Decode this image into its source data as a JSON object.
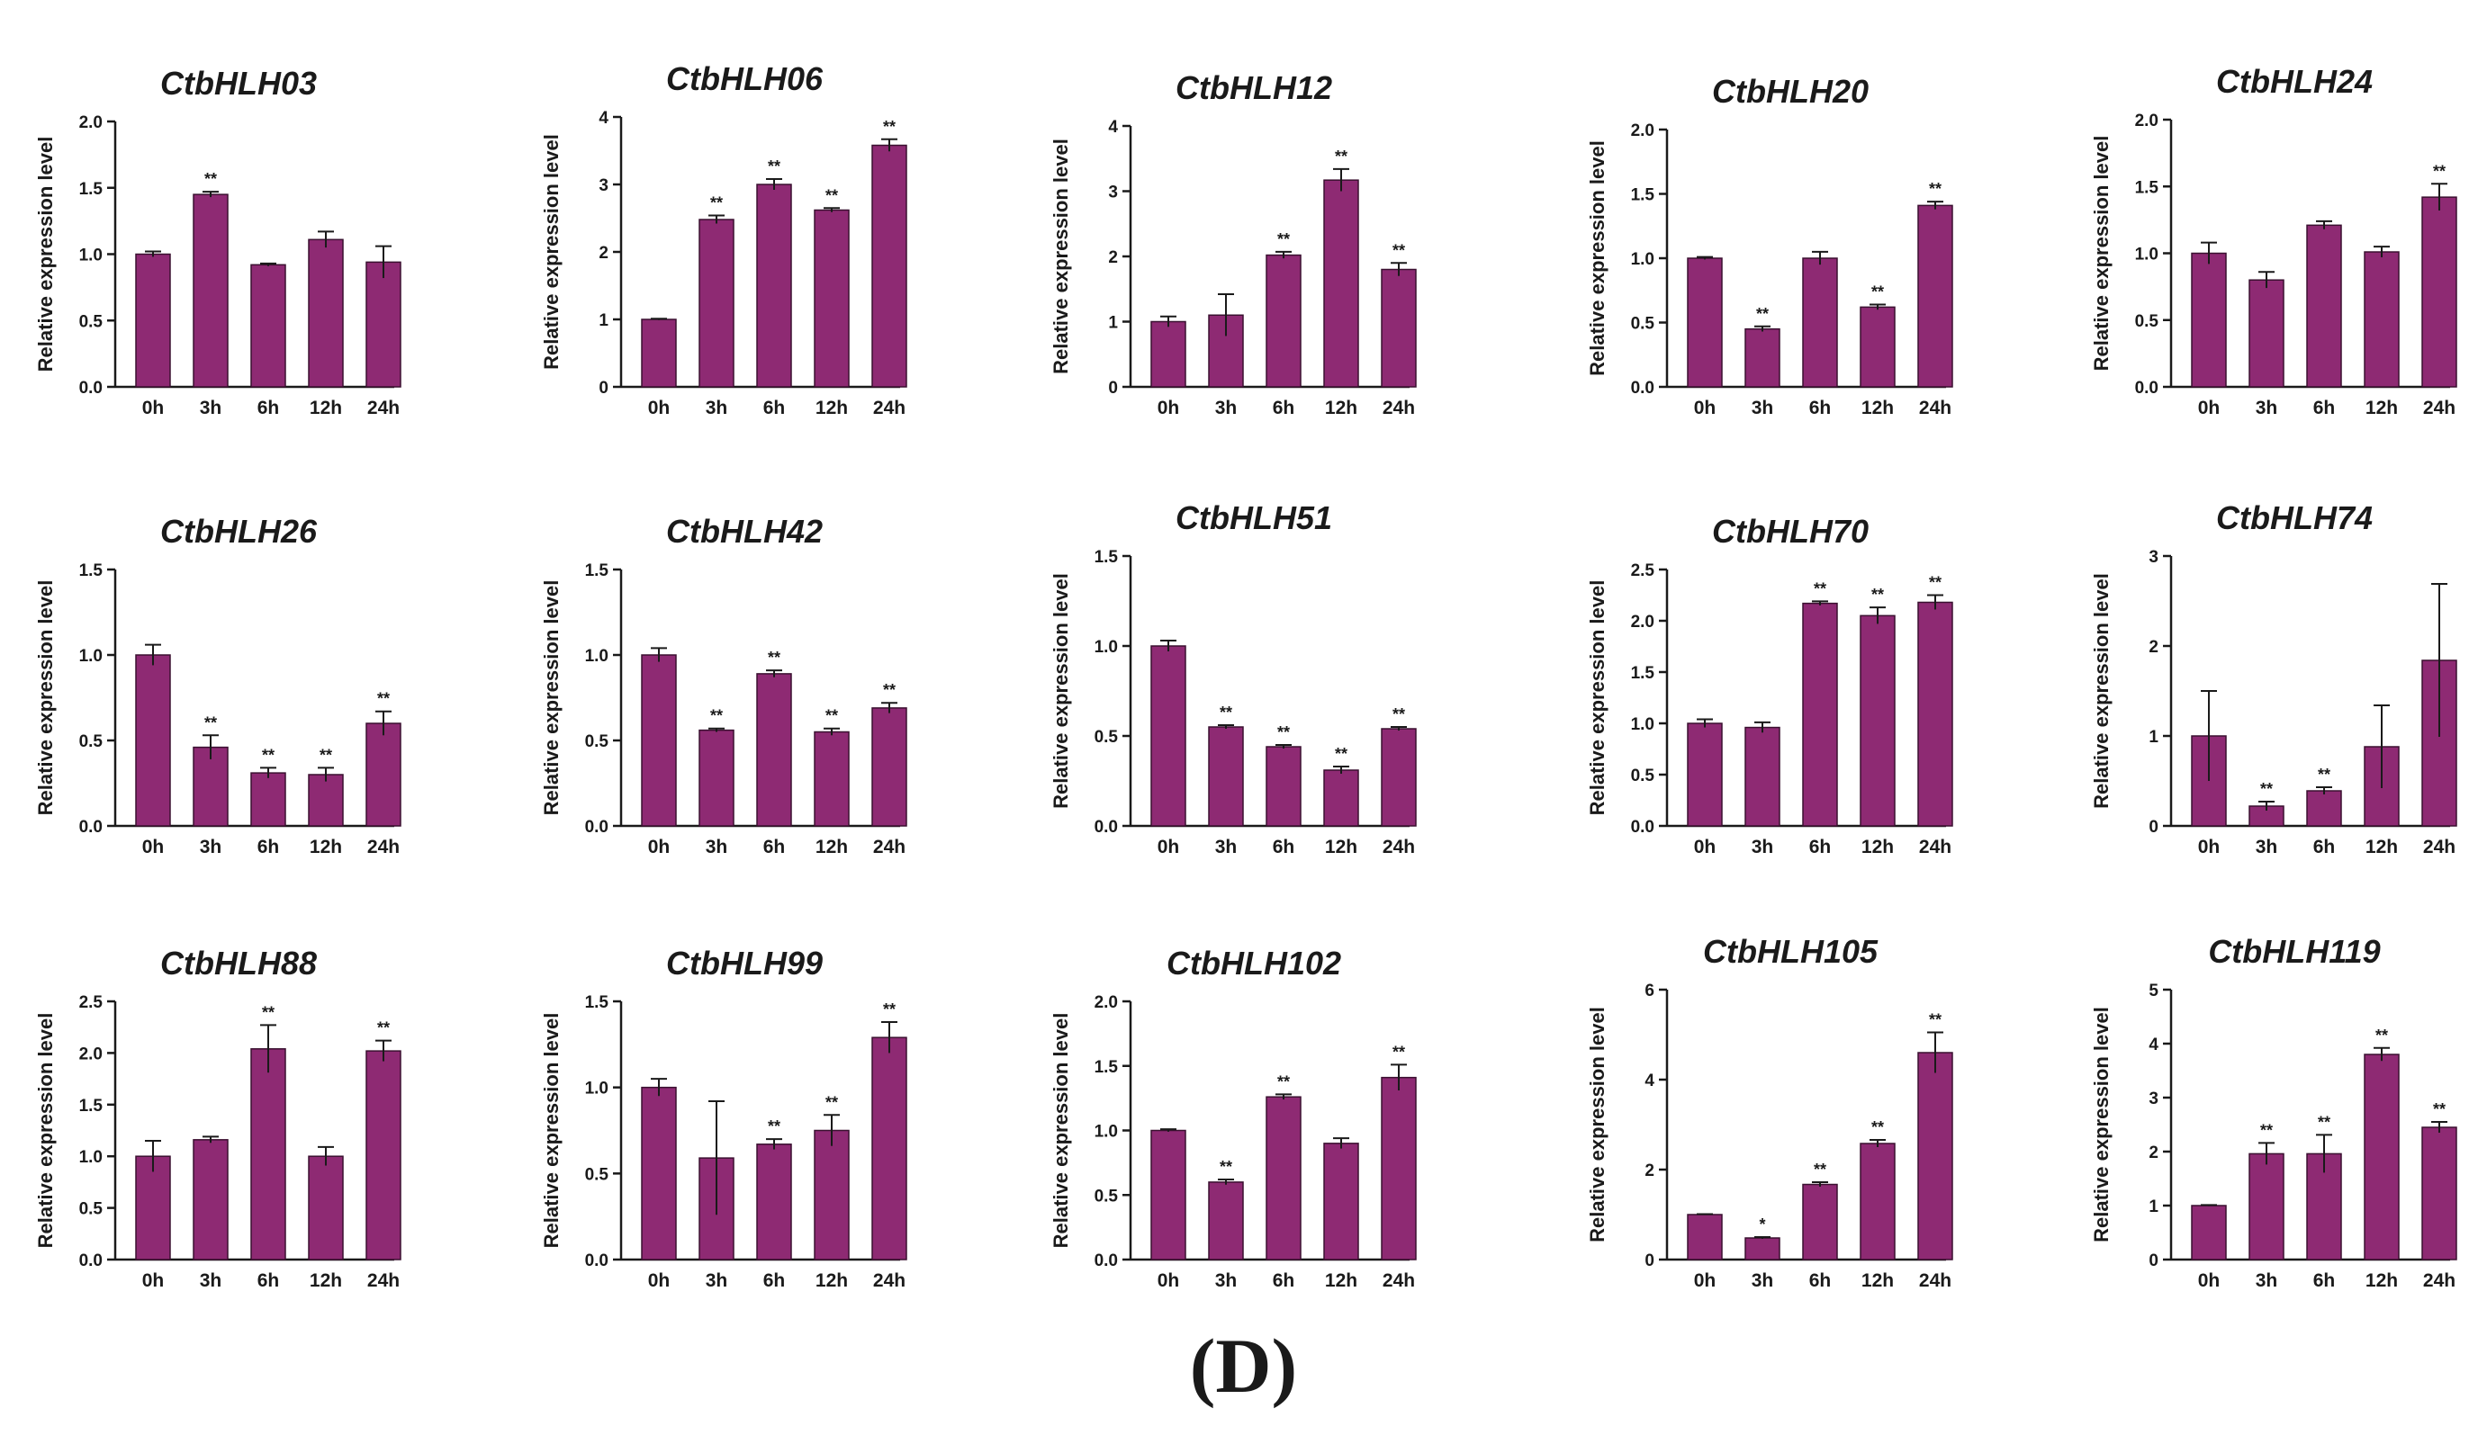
{
  "panel_label": "(D)",
  "colors": {
    "bar": "#8e2a73",
    "bar_edge": "#3a1030",
    "axis": "#1a1a1a"
  },
  "chart_data": [
    {
      "type": "bar",
      "title": "CtbHLH03",
      "ylabel": "Relative expression level",
      "categories": [
        "0h",
        "3h",
        "6h",
        "12h",
        "24h"
      ],
      "values": [
        1.0,
        1.45,
        0.92,
        1.11,
        0.94
      ],
      "errors": [
        0.02,
        0.02,
        0.01,
        0.06,
        0.12
      ],
      "significance": [
        "",
        "**",
        "",
        "",
        ""
      ],
      "ylim": [
        0,
        2
      ],
      "yticks": [
        "0.0",
        "0.5",
        "1.0",
        "1.5",
        "2.0"
      ]
    },
    {
      "type": "bar",
      "title": "CtbHLH06",
      "ylabel": "Relative expression level",
      "categories": [
        "0h",
        "3h",
        "6h",
        "12h",
        "24h"
      ],
      "values": [
        1.0,
        2.48,
        3.0,
        2.62,
        3.58
      ],
      "errors": [
        0.01,
        0.06,
        0.08,
        0.03,
        0.09
      ],
      "significance": [
        "",
        "**",
        "**",
        "**",
        "**"
      ],
      "ylim": [
        0,
        4
      ],
      "yticks": [
        "0",
        "1",
        "2",
        "3",
        "4"
      ]
    },
    {
      "type": "bar",
      "title": "CtbHLH12",
      "ylabel": "Relative expression level",
      "categories": [
        "0h",
        "3h",
        "6h",
        "12h",
        "24h"
      ],
      "values": [
        1.0,
        1.1,
        2.02,
        3.17,
        1.8
      ],
      "errors": [
        0.08,
        0.32,
        0.05,
        0.17,
        0.1
      ],
      "significance": [
        "",
        "",
        "**",
        "**",
        "**"
      ],
      "ylim": [
        0,
        4
      ],
      "yticks": [
        "0",
        "1",
        "2",
        "3",
        "4"
      ]
    },
    {
      "type": "bar",
      "title": "CtbHLH20",
      "ylabel": "Relative expression level",
      "categories": [
        "0h",
        "3h",
        "6h",
        "12h",
        "24h"
      ],
      "values": [
        1.0,
        0.45,
        1.0,
        0.62,
        1.41
      ],
      "errors": [
        0.01,
        0.02,
        0.05,
        0.02,
        0.03
      ],
      "significance": [
        "",
        "**",
        "",
        "**",
        "**"
      ],
      "ylim": [
        0,
        2
      ],
      "yticks": [
        "0.0",
        "0.5",
        "1.0",
        "1.5",
        "2.0"
      ]
    },
    {
      "type": "bar",
      "title": "CtbHLH24",
      "ylabel": "Relative expression level",
      "categories": [
        "0h",
        "3h",
        "6h",
        "12h",
        "24h"
      ],
      "values": [
        1.0,
        0.8,
        1.21,
        1.01,
        1.42
      ],
      "errors": [
        0.08,
        0.06,
        0.03,
        0.04,
        0.1
      ],
      "significance": [
        "",
        "",
        "",
        "",
        "**"
      ],
      "ylim": [
        0,
        2
      ],
      "yticks": [
        "0.0",
        "0.5",
        "1.0",
        "1.5",
        "2.0"
      ]
    },
    {
      "type": "bar",
      "title": "CtbHLH26",
      "ylabel": "Relative expression level",
      "categories": [
        "0h",
        "3h",
        "6h",
        "12h",
        "24h"
      ],
      "values": [
        1.0,
        0.46,
        0.31,
        0.3,
        0.6
      ],
      "errors": [
        0.06,
        0.07,
        0.03,
        0.04,
        0.07
      ],
      "significance": [
        "",
        "**",
        "**",
        "**",
        "**"
      ],
      "ylim": [
        0,
        1.5
      ],
      "yticks": [
        "0.0",
        "0.5",
        "1.0",
        "1.5"
      ]
    },
    {
      "type": "bar",
      "title": "CtbHLH42",
      "ylabel": "Relative expression level",
      "categories": [
        "0h",
        "3h",
        "6h",
        "12h",
        "24h"
      ],
      "values": [
        1.0,
        0.56,
        0.89,
        0.55,
        0.69
      ],
      "errors": [
        0.04,
        0.01,
        0.02,
        0.02,
        0.03
      ],
      "significance": [
        "",
        "**",
        "**",
        "**",
        "**"
      ],
      "ylim": [
        0,
        1.5
      ],
      "yticks": [
        "0.0",
        "0.5",
        "1.0",
        "1.5"
      ]
    },
    {
      "type": "bar",
      "title": "CtbHLH51",
      "ylabel": "Relative expression level",
      "categories": [
        "0h",
        "3h",
        "6h",
        "12h",
        "24h"
      ],
      "values": [
        1.0,
        0.55,
        0.44,
        0.31,
        0.54
      ],
      "errors": [
        0.03,
        0.01,
        0.01,
        0.02,
        0.01
      ],
      "significance": [
        "",
        "**",
        "**",
        "**",
        "**"
      ],
      "ylim": [
        0,
        1.5
      ],
      "yticks": [
        "0.0",
        "0.5",
        "1.0",
        "1.5"
      ]
    },
    {
      "type": "bar",
      "title": "CtbHLH70",
      "ylabel": "Relative expression level",
      "categories": [
        "0h",
        "3h",
        "6h",
        "12h",
        "24h"
      ],
      "values": [
        1.0,
        0.96,
        2.17,
        2.05,
        2.18
      ],
      "errors": [
        0.04,
        0.05,
        0.02,
        0.08,
        0.07
      ],
      "significance": [
        "",
        "",
        "**",
        "**",
        "**"
      ],
      "ylim": [
        0,
        2.5
      ],
      "yticks": [
        "0.0",
        "0.5",
        "1.0",
        "1.5",
        "2.0",
        "2.5"
      ]
    },
    {
      "type": "bar",
      "title": "CtbHLH74",
      "ylabel": "Relative expression level",
      "categories": [
        "0h",
        "3h",
        "6h",
        "12h",
        "24h"
      ],
      "values": [
        1.0,
        0.22,
        0.39,
        0.88,
        1.84
      ],
      "errors": [
        0.5,
        0.05,
        0.04,
        0.46,
        0.85
      ],
      "significance": [
        "",
        "**",
        "**",
        "",
        ""
      ],
      "ylim": [
        0,
        3
      ],
      "yticks": [
        "0",
        "1",
        "2",
        "3"
      ]
    },
    {
      "type": "bar",
      "title": "CtbHLH88",
      "ylabel": "Relative expression level",
      "categories": [
        "0h",
        "3h",
        "6h",
        "12h",
        "24h"
      ],
      "values": [
        1.0,
        1.16,
        2.04,
        1.0,
        2.02
      ],
      "errors": [
        0.15,
        0.03,
        0.23,
        0.09,
        0.1
      ],
      "significance": [
        "",
        "",
        "**",
        "",
        "**"
      ],
      "ylim": [
        0,
        2.5
      ],
      "yticks": [
        "0.0",
        "0.5",
        "1.0",
        "1.5",
        "2.0",
        "2.5"
      ]
    },
    {
      "type": "bar",
      "title": "CtbHLH99",
      "ylabel": "Relative expression level",
      "categories": [
        "0h",
        "3h",
        "6h",
        "12h",
        "24h"
      ],
      "values": [
        1.0,
        0.59,
        0.67,
        0.75,
        1.29
      ],
      "errors": [
        0.05,
        0.33,
        0.03,
        0.09,
        0.09
      ],
      "significance": [
        "",
        "",
        "**",
        "**",
        "**"
      ],
      "ylim": [
        0,
        1.5
      ],
      "yticks": [
        "0.0",
        "0.5",
        "1.0",
        "1.5"
      ]
    },
    {
      "type": "bar",
      "title": "CtbHLH102",
      "ylabel": "Relative expression level",
      "categories": [
        "0h",
        "3h",
        "6h",
        "12h",
        "24h"
      ],
      "values": [
        1.0,
        0.6,
        1.26,
        0.9,
        1.41
      ],
      "errors": [
        0.01,
        0.02,
        0.02,
        0.04,
        0.1
      ],
      "significance": [
        "",
        "**",
        "**",
        "",
        "**"
      ],
      "ylim": [
        0,
        2
      ],
      "yticks": [
        "0.0",
        "0.5",
        "1.0",
        "1.5",
        "2.0"
      ]
    },
    {
      "type": "bar",
      "title": "CtbHLH105",
      "ylabel": "Relative expression level",
      "categories": [
        "0h",
        "3h",
        "6h",
        "12h",
        "24h"
      ],
      "values": [
        1.0,
        0.48,
        1.67,
        2.58,
        4.6
      ],
      "errors": [
        0.01,
        0.02,
        0.05,
        0.08,
        0.45
      ],
      "significance": [
        "",
        "*",
        "**",
        "**",
        "**"
      ],
      "ylim": [
        0,
        6
      ],
      "yticks": [
        "0",
        "2",
        "4",
        "6"
      ]
    },
    {
      "type": "bar",
      "title": "CtbHLH119",
      "ylabel": "Relative expression level",
      "categories": [
        "0h",
        "3h",
        "6h",
        "12h",
        "24h"
      ],
      "values": [
        1.0,
        1.96,
        1.96,
        3.8,
        2.45
      ],
      "errors": [
        0.01,
        0.2,
        0.35,
        0.12,
        0.1
      ],
      "significance": [
        "",
        "**",
        "**",
        "**",
        "**"
      ],
      "ylim": [
        0,
        5
      ],
      "yticks": [
        "0",
        "1",
        "2",
        "3",
        "4",
        "5"
      ]
    }
  ]
}
